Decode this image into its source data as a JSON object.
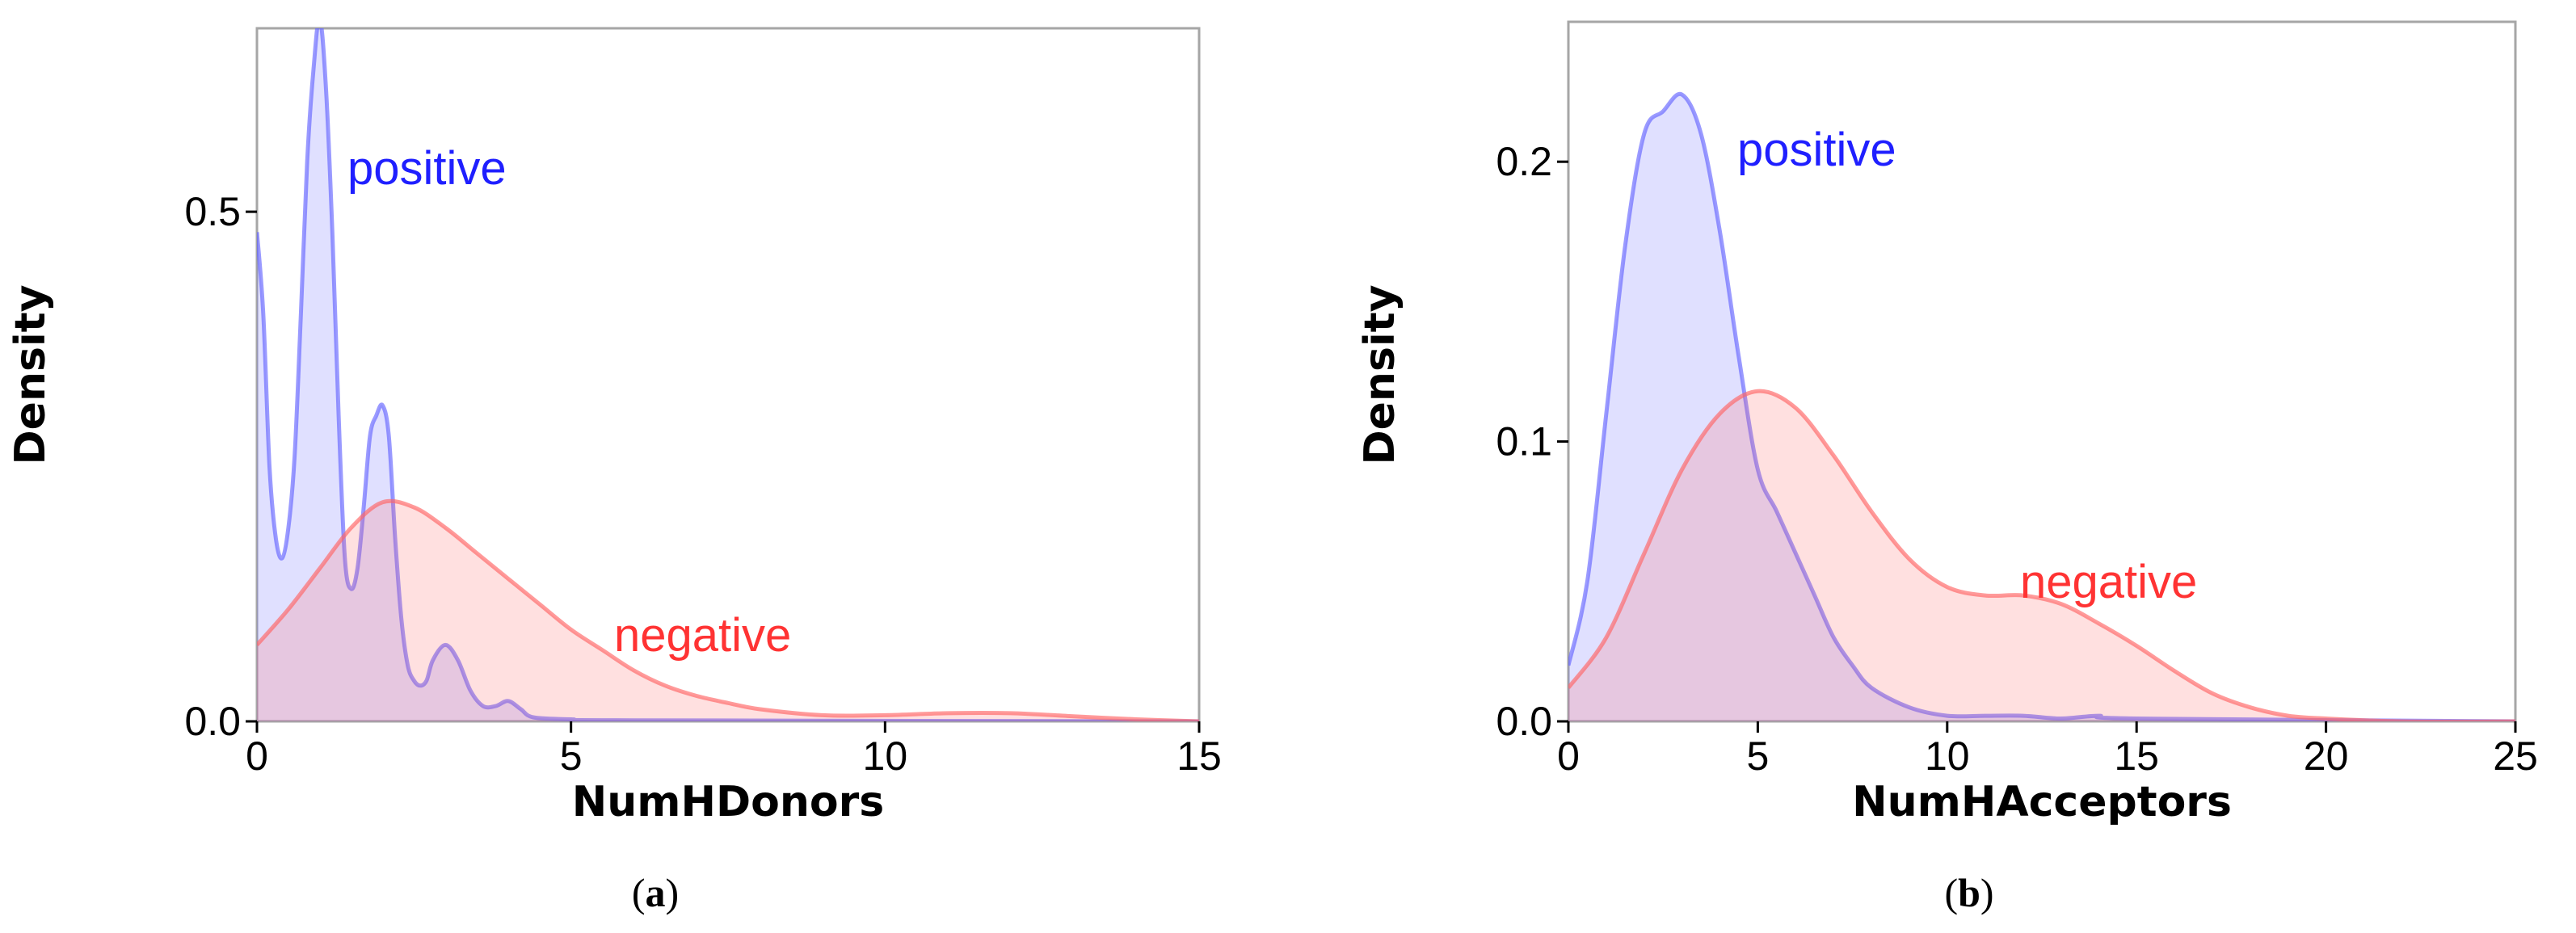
{
  "chart_data": [
    {
      "type": "area",
      "caption": "a",
      "xlabel": "NumHDonors",
      "ylabel": "Density",
      "xlim": [
        0,
        15
      ],
      "ylim": [
        0,
        0.68
      ],
      "xticks": [
        "0",
        "5",
        "10",
        "15"
      ],
      "yticks": [
        "0.0",
        "0.5"
      ],
      "grid": false,
      "series": [
        {
          "name": "positive",
          "color": "#6464ff",
          "x": [
            0,
            0.1,
            0.2,
            0.3,
            0.4,
            0.5,
            0.6,
            0.7,
            0.8,
            0.9,
            1.0,
            1.1,
            1.2,
            1.3,
            1.4,
            1.5,
            1.6,
            1.7,
            1.8,
            1.9,
            2.0,
            2.1,
            2.2,
            2.3,
            2.4,
            2.5,
            2.6,
            2.7,
            2.8,
            3.0,
            3.2,
            3.4,
            3.6,
            3.8,
            4.0,
            4.2,
            4.4,
            5.0,
            6.0,
            15.0
          ],
          "y": [
            0.48,
            0.4,
            0.25,
            0.18,
            0.16,
            0.19,
            0.26,
            0.4,
            0.55,
            0.64,
            0.69,
            0.62,
            0.48,
            0.3,
            0.16,
            0.13,
            0.15,
            0.21,
            0.28,
            0.3,
            0.31,
            0.28,
            0.18,
            0.1,
            0.055,
            0.04,
            0.035,
            0.04,
            0.06,
            0.075,
            0.06,
            0.03,
            0.015,
            0.015,
            0.02,
            0.012,
            0.004,
            0.002,
            0.001,
            0.0
          ]
        },
        {
          "name": "negative",
          "color": "#ff6464",
          "x": [
            0,
            0.5,
            1.0,
            1.5,
            2.0,
            2.5,
            3.0,
            3.5,
            4.0,
            4.5,
            5.0,
            5.5,
            6.0,
            6.5,
            7.0,
            7.5,
            8.0,
            9.0,
            10.0,
            11.0,
            12.0,
            13.0,
            14.0,
            15.0
          ],
          "y": [
            0.075,
            0.11,
            0.15,
            0.19,
            0.215,
            0.21,
            0.19,
            0.165,
            0.14,
            0.115,
            0.09,
            0.07,
            0.05,
            0.035,
            0.025,
            0.018,
            0.012,
            0.006,
            0.006,
            0.008,
            0.008,
            0.005,
            0.002,
            0.0
          ]
        }
      ]
    },
    {
      "type": "area",
      "caption": "b",
      "xlabel": "NumHAcceptors",
      "ylabel": "Density",
      "xlim": [
        0,
        25
      ],
      "ylim": [
        0,
        0.25
      ],
      "xticks": [
        "0",
        "5",
        "10",
        "15",
        "20",
        "25"
      ],
      "yticks": [
        "0.0",
        "0.1",
        "0.2"
      ],
      "grid": false,
      "series": [
        {
          "name": "positive",
          "color": "#6464ff",
          "x": [
            0,
            0.5,
            1.0,
            1.5,
            2.0,
            2.5,
            3.0,
            3.5,
            4.0,
            4.5,
            5.0,
            5.5,
            6.0,
            6.5,
            7.0,
            7.5,
            8.0,
            9.0,
            10.0,
            11.0,
            12.0,
            13.0,
            14.0,
            15.0,
            25.0
          ],
          "y": [
            0.02,
            0.05,
            0.11,
            0.17,
            0.21,
            0.218,
            0.224,
            0.21,
            0.175,
            0.13,
            0.09,
            0.075,
            0.06,
            0.045,
            0.03,
            0.02,
            0.012,
            0.005,
            0.002,
            0.002,
            0.002,
            0.001,
            0.002,
            0.001,
            0.0
          ]
        },
        {
          "name": "negative",
          "color": "#ff6464",
          "x": [
            0,
            1,
            2,
            3,
            4,
            5,
            6,
            7,
            8,
            9,
            10,
            11,
            12,
            13,
            14,
            15,
            16,
            17,
            18,
            19,
            20,
            22,
            25
          ],
          "y": [
            0.012,
            0.03,
            0.06,
            0.09,
            0.11,
            0.118,
            0.112,
            0.095,
            0.075,
            0.058,
            0.048,
            0.045,
            0.045,
            0.042,
            0.035,
            0.027,
            0.018,
            0.01,
            0.005,
            0.002,
            0.001,
            0.0,
            0.0
          ]
        }
      ]
    }
  ]
}
